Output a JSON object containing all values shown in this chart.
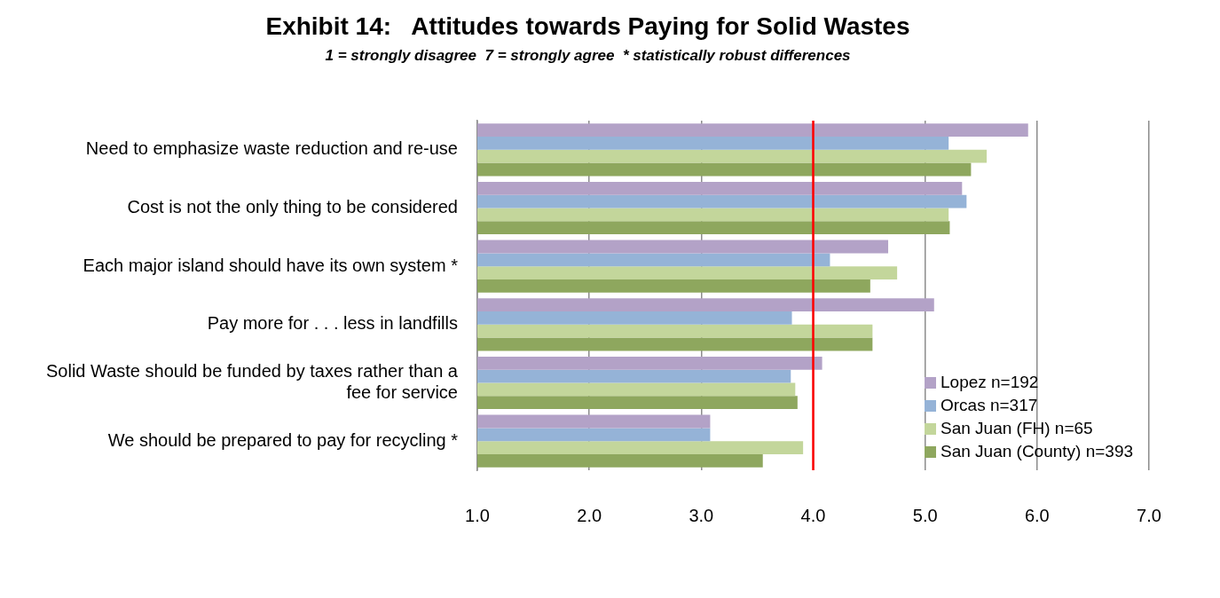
{
  "chart_data": {
    "type": "bar",
    "orientation": "horizontal",
    "title": "Exhibit 14:   Attitudes towards Paying for Solid Wastes",
    "subtitle": "1 = strongly disagree  7 = strongly agree  * statistically robust differences",
    "categories": [
      "Need to emphasize waste reduction and re-use",
      "Cost is not the only thing to be considered",
      "Each major island should have its own system *",
      "Pay more for . . . less in landfills",
      "Solid Waste should be funded by taxes rather than a fee for service",
      "We should be prepared to pay for recycling *"
    ],
    "series": [
      {
        "name": "Lopez  n=192",
        "color": "#b3a2c7",
        "values": [
          5.92,
          5.33,
          4.67,
          5.08,
          4.08,
          3.08
        ]
      },
      {
        "name": "Orcas n=317",
        "color": "#95b3d7",
        "values": [
          5.21,
          5.37,
          4.15,
          3.81,
          3.8,
          3.08
        ]
      },
      {
        "name": "San Juan (FH) n=65",
        "color": "#c3d69b",
        "values": [
          5.55,
          5.21,
          4.75,
          4.53,
          3.84,
          3.91
        ]
      },
      {
        "name": "San Juan (County) n=393",
        "color": "#8ea75e",
        "values": [
          5.41,
          5.22,
          4.51,
          4.53,
          3.86,
          3.55
        ]
      }
    ],
    "xlim": [
      1,
      7
    ],
    "xticks": [
      {
        "value": 1,
        "label": "1.0"
      },
      {
        "value": 2,
        "label": "2.0"
      },
      {
        "value": 3,
        "label": "3.0"
      },
      {
        "value": 4,
        "label": "4.0"
      },
      {
        "value": 5,
        "label": "5.0"
      },
      {
        "value": 6,
        "label": "6.0"
      },
      {
        "value": 7,
        "label": "7.0"
      }
    ],
    "ref_lines": [
      {
        "axis": "x",
        "value": 4,
        "color": "#ff0000"
      }
    ],
    "grid": "x",
    "legend": "bottom right"
  }
}
